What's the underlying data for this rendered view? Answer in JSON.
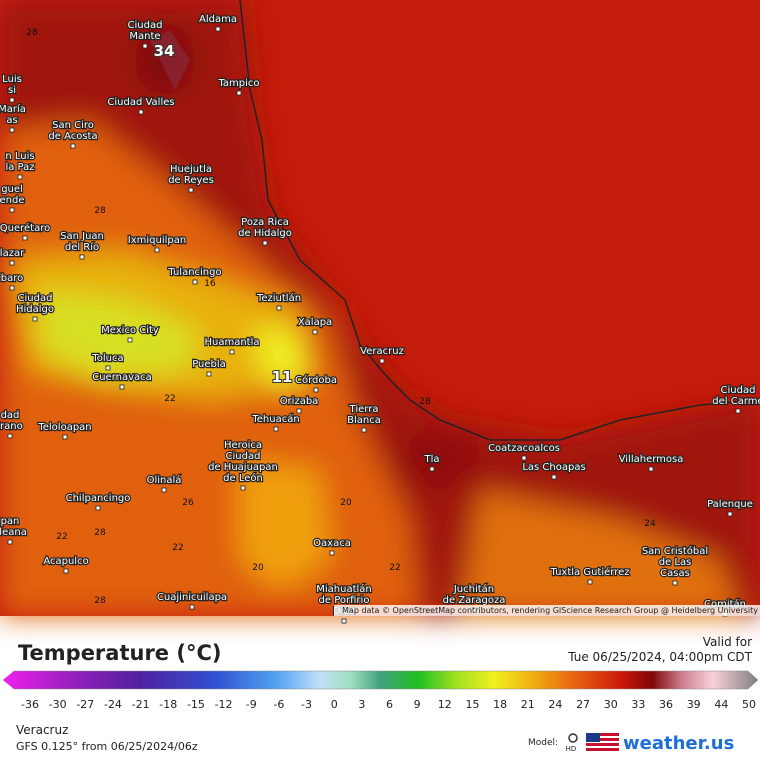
{
  "map": {
    "cities": [
      [
        "Aldama"
      ],
      [
        "Ciudad",
        "Mante"
      ],
      [
        "Tampico"
      ],
      [
        "Ciudad Valles"
      ],
      [
        "San Ciro",
        "de Acosta"
      ],
      [
        "Luis",
        "si"
      ],
      [
        "María",
        "as"
      ],
      [
        "n Luis",
        "la Paz"
      ],
      [
        "guel",
        "ende"
      ],
      [
        "Huejutla",
        "de Reyes"
      ],
      [
        "Poza Rica",
        "de Hidalgo"
      ],
      [
        "Querétaro"
      ],
      [
        "San Juan",
        "del Río"
      ],
      [
        "Ixmiquilpan"
      ],
      [
        "lazar"
      ],
      [
        "Tulancingo"
      ],
      [
        "baro"
      ],
      [
        "Ciudad",
        "Hidalgo"
      ],
      [
        "Teziutlán"
      ],
      [
        "Mexico City"
      ],
      [
        "Xalapa"
      ],
      [
        "Huamantla"
      ],
      [
        "Veracruz"
      ],
      [
        "Toluca"
      ],
      [
        "Puebla"
      ],
      [
        "Cuernavaca"
      ],
      [
        "Córdoba"
      ],
      [
        "Orizaba"
      ],
      [
        "Tierra",
        "Blanca"
      ],
      [
        "dad",
        "irano"
      ],
      [
        "Tehuacán"
      ],
      [
        "Teloloapan"
      ],
      [
        "Heroica",
        "Ciudad",
        "de Huajuapan",
        "de León"
      ],
      [
        "Coatzacoalcos"
      ],
      [
        "Tla"
      ],
      [
        "Las Choapas"
      ],
      [
        "Villahermosa"
      ],
      [
        "Ciudad",
        "del Carme"
      ],
      [
        "Olinalá"
      ],
      [
        "Chilpancingo"
      ],
      [
        "pan",
        "aleana"
      ],
      [
        "Palenque"
      ],
      [
        "Oaxaca"
      ],
      [
        "Acapulco"
      ],
      [
        "San Cristóbal",
        "de Las",
        "Casas"
      ],
      [
        "Tuxtla Gutiérrez"
      ],
      [
        "Miahuatlán",
        "de Porfirio",
        "Díaz"
      ],
      [
        "Juchitán",
        "de Zaragoza"
      ],
      [
        "Cuajinicuilapa"
      ],
      [
        "Comitán"
      ]
    ],
    "contours": [
      "28",
      "28",
      "16",
      "22",
      "28",
      "20",
      "24",
      "28",
      "22",
      "22",
      "20",
      "22",
      "28",
      "26"
    ],
    "highlights": [
      "34",
      "11"
    ],
    "attribution": "Map data © OpenStreetMap contributors, rendering GIScience Research Group @ Heidelberg University"
  },
  "legend": {
    "title": "Temperature (°C)",
    "ticks": [
      -36,
      -30,
      -27,
      -24,
      -21,
      -18,
      -15,
      -12,
      -9,
      -6,
      -3,
      0,
      3,
      6,
      9,
      12,
      15,
      18,
      21,
      24,
      27,
      30,
      33,
      36,
      39,
      44,
      50
    ]
  },
  "valid": {
    "label": "Valid for",
    "time": "Tue 06/25/2024, 04:00pm CDT"
  },
  "footer": {
    "location": "Veracruz",
    "model_run": "GFS 0.125° from  06/25/2024/06z",
    "model_label": "Model:",
    "hd": "HD",
    "brand": "weather.us"
  }
}
